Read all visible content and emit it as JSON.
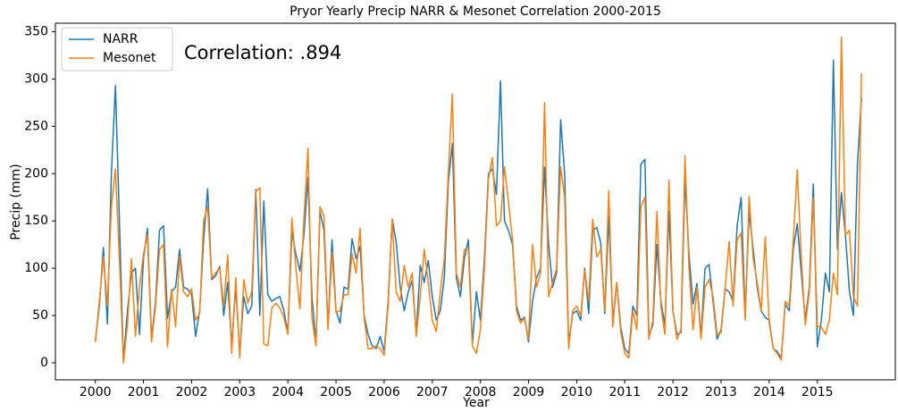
{
  "chart_data": {
    "type": "line",
    "title": "Pryor Yearly Precip NARR & Mesonet Correlation 2000-2015",
    "annotation": "Correlation: .894",
    "xlabel": "Year",
    "ylabel": "Precip (mm)",
    "x": [
      2000,
      2000.083,
      2000.167,
      2000.25,
      2000.333,
      2000.417,
      2000.5,
      2000.583,
      2000.667,
      2000.75,
      2000.833,
      2000.917,
      2001,
      2001.083,
      2001.167,
      2001.25,
      2001.333,
      2001.417,
      2001.5,
      2001.583,
      2001.667,
      2001.75,
      2001.833,
      2001.917,
      2002,
      2002.083,
      2002.167,
      2002.25,
      2002.333,
      2002.417,
      2002.5,
      2002.583,
      2002.667,
      2002.75,
      2002.833,
      2002.917,
      2003,
      2003.083,
      2003.167,
      2003.25,
      2003.333,
      2003.417,
      2003.5,
      2003.583,
      2003.667,
      2003.75,
      2003.833,
      2003.917,
      2004,
      2004.083,
      2004.167,
      2004.25,
      2004.333,
      2004.417,
      2004.5,
      2004.583,
      2004.667,
      2004.75,
      2004.833,
      2004.917,
      2005,
      2005.083,
      2005.167,
      2005.25,
      2005.333,
      2005.417,
      2005.5,
      2005.583,
      2005.667,
      2005.75,
      2005.833,
      2005.917,
      2006,
      2006.083,
      2006.167,
      2006.25,
      2006.333,
      2006.417,
      2006.5,
      2006.583,
      2006.667,
      2006.75,
      2006.833,
      2006.917,
      2007,
      2007.083,
      2007.167,
      2007.25,
      2007.333,
      2007.417,
      2007.5,
      2007.583,
      2007.667,
      2007.75,
      2007.833,
      2007.917,
      2008,
      2008.083,
      2008.167,
      2008.25,
      2008.333,
      2008.417,
      2008.5,
      2008.583,
      2008.667,
      2008.75,
      2008.833,
      2008.917,
      2009,
      2009.083,
      2009.167,
      2009.25,
      2009.333,
      2009.417,
      2009.5,
      2009.583,
      2009.667,
      2009.75,
      2009.833,
      2009.917,
      2010,
      2010.083,
      2010.167,
      2010.25,
      2010.333,
      2010.417,
      2010.5,
      2010.583,
      2010.667,
      2010.75,
      2010.833,
      2010.917,
      2011,
      2011.083,
      2011.167,
      2011.25,
      2011.333,
      2011.417,
      2011.5,
      2011.583,
      2011.667,
      2011.75,
      2011.833,
      2011.917,
      2012,
      2012.083,
      2012.167,
      2012.25,
      2012.333,
      2012.417,
      2012.5,
      2012.583,
      2012.667,
      2012.75,
      2012.833,
      2012.917,
      2013,
      2013.083,
      2013.167,
      2013.25,
      2013.333,
      2013.417,
      2013.5,
      2013.583,
      2013.667,
      2013.75,
      2013.833,
      2013.917,
      2014,
      2014.083,
      2014.167,
      2014.25,
      2014.333,
      2014.417,
      2014.5,
      2014.583,
      2014.667,
      2014.75,
      2014.833,
      2014.917,
      2015,
      2015.083,
      2015.167,
      2015.25,
      2015.333,
      2015.417,
      2015.5,
      2015.583,
      2015.667,
      2015.75,
      2015.833,
      2015.917
    ],
    "series": [
      {
        "name": "NARR",
        "color": "#1f77b4",
        "values": [
          23,
          60,
          122,
          41,
          200,
          293,
          150,
          2,
          55,
          95,
          100,
          30,
          110,
          142,
          25,
          65,
          140,
          145,
          47,
          75,
          80,
          120,
          80,
          78,
          72,
          28,
          55,
          130,
          184,
          88,
          92,
          102,
          50,
          85,
          18,
          80,
          10,
          70,
          52,
          60,
          183,
          50,
          171,
          72,
          65,
          68,
          70,
          55,
          32,
          138,
          115,
          97,
          135,
          196,
          70,
          20,
          160,
          140,
          38,
          130,
          55,
          42,
          80,
          78,
          131,
          110,
          123,
          50,
          30,
          18,
          15,
          28,
          12,
          65,
          152,
          128,
          80,
          55,
          75,
          87,
          30,
          103,
          85,
          108,
          70,
          45,
          55,
          90,
          190,
          232,
          90,
          70,
          110,
          130,
          20,
          75,
          45,
          110,
          200,
          205,
          178,
          298,
          150,
          140,
          125,
          60,
          45,
          48,
          22,
          65,
          90,
          100,
          207,
          125,
          80,
          95,
          257,
          200,
          20,
          52,
          55,
          45,
          100,
          52,
          140,
          143,
          127,
          52,
          155,
          45,
          85,
          37,
          15,
          10,
          60,
          50,
          210,
          215,
          30,
          40,
          125,
          65,
          40,
          160,
          55,
          30,
          32,
          195,
          115,
          62,
          84,
          28,
          100,
          104,
          65,
          25,
          35,
          78,
          75,
          65,
          145,
          175,
          50,
          160,
          120,
          80,
          55,
          48,
          45,
          15,
          12,
          5,
          62,
          55,
          120,
          147,
          95,
          45,
          80,
          189,
          17,
          45,
          95,
          75,
          320,
          120,
          180,
          135,
          75,
          50,
          210,
          280
        ]
      },
      {
        "name": "Mesonet",
        "color": "#ff7f0e",
        "values": [
          22,
          65,
          112,
          60,
          165,
          205,
          110,
          0,
          40,
          110,
          28,
          80,
          115,
          135,
          22,
          60,
          120,
          125,
          17,
          78,
          38,
          112,
          75,
          70,
          78,
          45,
          52,
          150,
          165,
          90,
          95,
          100,
          60,
          114,
          10,
          90,
          5,
          88,
          63,
          75,
          181,
          185,
          20,
          18,
          58,
          63,
          58,
          48,
          30,
          153,
          100,
          57,
          152,
          227,
          48,
          18,
          165,
          155,
          35,
          117,
          53,
          55,
          72,
          72,
          115,
          95,
          142,
          48,
          15,
          15,
          18,
          15,
          8,
          60,
          152,
          75,
          65,
          103,
          80,
          95,
          28,
          70,
          120,
          85,
          45,
          33,
          75,
          110,
          200,
          284,
          95,
          80,
          120,
          120,
          18,
          10,
          35,
          100,
          195,
          217,
          145,
          150,
          207,
          170,
          130,
          55,
          42,
          47,
          25,
          125,
          80,
          95,
          275,
          70,
          85,
          100,
          207,
          175,
          15,
          55,
          60,
          50,
          98,
          65,
          152,
          112,
          120,
          55,
          182,
          38,
          85,
          32,
          10,
          5,
          55,
          35,
          165,
          175,
          25,
          45,
          160,
          60,
          30,
          193,
          55,
          25,
          35,
          219,
          100,
          35,
          80,
          25,
          80,
          88,
          70,
          30,
          32,
          78,
          128,
          60,
          130,
          137,
          45,
          176,
          110,
          85,
          55,
          133,
          42,
          15,
          10,
          3,
          65,
          60,
          130,
          204,
          110,
          40,
          75,
          175,
          38,
          38,
          30,
          45,
          95,
          72,
          344,
          135,
          140,
          70,
          60,
          306
        ]
      }
    ],
    "xlim": [
      1999.17,
      2016.62
    ],
    "xticks": [
      2000,
      2001,
      2002,
      2003,
      2004,
      2005,
      2006,
      2007,
      2008,
      2009,
      2010,
      2011,
      2012,
      2013,
      2014,
      2015
    ],
    "ylim": [
      -18,
      359
    ],
    "yticks": [
      0,
      50,
      100,
      150,
      200,
      250,
      300,
      350
    ],
    "grid": false,
    "legend": "upper left"
  }
}
